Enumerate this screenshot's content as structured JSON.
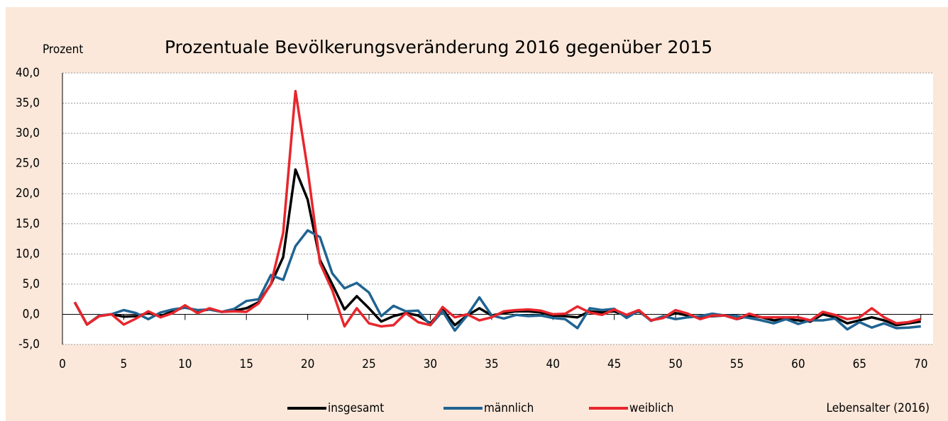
{
  "chart_data": {
    "type": "line",
    "title": "Prozentuale Bevölkerungsveränderung 2016 gegenüber 2015",
    "y_label": "Prozent",
    "x_label": "Lebensalter (2016)",
    "x": [
      1,
      2,
      3,
      4,
      5,
      6,
      7,
      8,
      9,
      10,
      11,
      12,
      13,
      14,
      15,
      16,
      17,
      18,
      19,
      20,
      21,
      22,
      23,
      24,
      25,
      26,
      27,
      28,
      29,
      30,
      31,
      32,
      33,
      34,
      35,
      36,
      37,
      38,
      39,
      40,
      41,
      42,
      43,
      44,
      45,
      46,
      47,
      48,
      49,
      50,
      51,
      52,
      53,
      54,
      55,
      56,
      57,
      58,
      59,
      60,
      61,
      62,
      63,
      64,
      65,
      66,
      67,
      68,
      69,
      70
    ],
    "series": [
      {
        "name": "insgesamt",
        "color": "#000000",
        "values": [
          2.0,
          -1.7,
          -0.3,
          0,
          -0.4,
          -0.3,
          0.2,
          -0.3,
          0.5,
          1.2,
          0.5,
          0.8,
          0.4,
          0.6,
          1.0,
          2.0,
          5.0,
          9.5,
          24.0,
          19.0,
          9.0,
          5.0,
          0.8,
          3.0,
          1.0,
          -1.2,
          -0.3,
          0.2,
          -0.2,
          -1.5,
          0.8,
          -1.8,
          -0.2,
          1.0,
          -0.2,
          0.2,
          0.5,
          0.5,
          0.3,
          -0.2,
          -0.3,
          -0.5,
          0.5,
          0.3,
          0.5,
          -0.3,
          0.5,
          -1.0,
          -0.5,
          0.2,
          -0.2,
          -0.5,
          -0.3,
          -0.2,
          -0.8,
          -0.2,
          -0.5,
          -1.0,
          -0.8,
          -1.0,
          -1.2,
          0,
          -0.5,
          -1.5,
          -1.0,
          -0.5,
          -1.0,
          -1.8,
          -1.5,
          -1.2
        ]
      },
      {
        "name": "männlich",
        "color": "#1f6391",
        "values": [
          2.0,
          -1.7,
          -0.2,
          0,
          0.7,
          0.2,
          -0.8,
          0.3,
          0.8,
          1.1,
          0.7,
          0.8,
          0.4,
          0.9,
          2.2,
          2.5,
          6.5,
          5.7,
          11.3,
          13.9,
          12.8,
          6.8,
          4.3,
          5.2,
          3.6,
          -0.3,
          1.4,
          0.5,
          0.6,
          -1.8,
          0.5,
          -2.7,
          -0.2,
          2.8,
          -0.2,
          -0.7,
          -0.1,
          -0.3,
          -0.2,
          -0.6,
          -0.8,
          -2.3,
          1.0,
          0.7,
          0.9,
          -0.6,
          0.6,
          -1.1,
          -0.3,
          -0.8,
          -0.5,
          -0.3,
          0.1,
          -0.2,
          -0.3,
          -0.6,
          -1.0,
          -1.5,
          -0.8,
          -1.6,
          -1.0,
          -1.0,
          -0.7,
          -2.5,
          -1.3,
          -2.2,
          -1.5,
          -2.3,
          -2.2,
          -2.0
        ]
      },
      {
        "name": "weiblich",
        "color": "#e8262d",
        "values": [
          2.0,
          -1.7,
          -0.3,
          0,
          -1.7,
          -0.7,
          0.5,
          -0.5,
          0.2,
          1.5,
          0.2,
          1.0,
          0.4,
          0.5,
          0.4,
          1.8,
          5.0,
          13.5,
          37.0,
          24.0,
          8.5,
          4.0,
          -2.0,
          1.0,
          -1.5,
          -2.0,
          -1.8,
          0.2,
          -1.3,
          -1.8,
          1.2,
          -0.5,
          0,
          -1.0,
          -0.5,
          0.5,
          0.7,
          0.8,
          0.6,
          0,
          0.1,
          1.3,
          0.3,
          -0.1,
          0.8,
          -0.1,
          0.7,
          -1.0,
          -0.6,
          0.7,
          0.1,
          -0.8,
          -0.2,
          -0.2,
          -0.8,
          0.1,
          -0.5,
          -0.5,
          -0.5,
          -0.5,
          -1.0,
          0.4,
          -0.1,
          -0.8,
          -0.5,
          1.0,
          -0.5,
          -1.5,
          -1.3,
          -0.8
        ]
      }
    ],
    "xlim": [
      0,
      71
    ],
    "xticks": [
      0,
      5,
      10,
      15,
      20,
      25,
      30,
      35,
      40,
      45,
      50,
      55,
      60,
      65,
      70
    ],
    "ylim": [
      -5,
      40
    ],
    "yticks": [
      {
        "value": -5,
        "label": "-5,0"
      },
      {
        "value": 0,
        "label": "0,0"
      },
      {
        "value": 5,
        "label": "5,0"
      },
      {
        "value": 10,
        "label": "10,0"
      },
      {
        "value": 15,
        "label": "15,0"
      },
      {
        "value": 20,
        "label": "20,0"
      },
      {
        "value": 25,
        "label": "25,0"
      },
      {
        "value": 30,
        "label": "30,0"
      },
      {
        "value": 35,
        "label": "35,0"
      },
      {
        "value": 40,
        "label": "40,0"
      }
    ],
    "grid": true,
    "legend": "bottom"
  }
}
